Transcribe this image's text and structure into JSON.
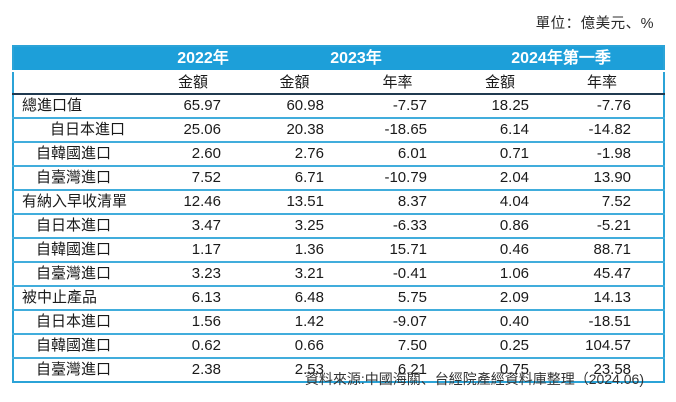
{
  "unit_label": "單位：億美元、%",
  "source_note": "資料來源:中國海關、台經院產經資料庫整理（2024.06)",
  "colors": {
    "header_bg": "#1D9FD9",
    "header_text": "#FFFFFF",
    "separator": "#41ADDC",
    "border": "#2BA3D7",
    "dark_line": "#203A50",
    "body_text": "#1A1A1A"
  },
  "table": {
    "year_headers": [
      {
        "label": "2022年",
        "span": 1
      },
      {
        "label": "2023年",
        "span": 2
      },
      {
        "label": "2024年第一季",
        "span": 2
      }
    ],
    "sub_headers": [
      "金額",
      "金額",
      "年率",
      "金額",
      "年率"
    ],
    "rows": [
      {
        "label": "總進口值",
        "indent": 0,
        "values": [
          "65.97",
          "60.98",
          "-7.57",
          "18.25",
          "-7.76"
        ]
      },
      {
        "label": "自日本進口",
        "indent": 2,
        "values": [
          "25.06",
          "20.38",
          "-18.65",
          "6.14",
          "-14.82"
        ]
      },
      {
        "label": "自韓國進口",
        "indent": 1,
        "values": [
          "2.60",
          "2.76",
          "6.01",
          "0.71",
          "-1.98"
        ]
      },
      {
        "label": "自臺灣進口",
        "indent": 1,
        "values": [
          "7.52",
          "6.71",
          "-10.79",
          "2.04",
          "13.90"
        ]
      },
      {
        "label": "有納入早收清單",
        "indent": 0,
        "values": [
          "12.46",
          "13.51",
          "8.37",
          "4.04",
          "7.52"
        ]
      },
      {
        "label": "自日本進口",
        "indent": 1,
        "values": [
          "3.47",
          "3.25",
          "-6.33",
          "0.86",
          "-5.21"
        ]
      },
      {
        "label": "自韓國進口",
        "indent": 1,
        "values": [
          "1.17",
          "1.36",
          "15.71",
          "0.46",
          "88.71"
        ]
      },
      {
        "label": "自臺灣進口",
        "indent": 1,
        "values": [
          "3.23",
          "3.21",
          "-0.41",
          "1.06",
          "45.47"
        ]
      },
      {
        "label": "被中止產品",
        "indent": 0,
        "values": [
          "6.13",
          "6.48",
          "5.75",
          "2.09",
          "14.13"
        ]
      },
      {
        "label": "自日本進口",
        "indent": 1,
        "values": [
          "1.56",
          "1.42",
          "-9.07",
          "0.40",
          "-18.51"
        ]
      },
      {
        "label": "自韓國進口",
        "indent": 1,
        "values": [
          "0.62",
          "0.66",
          "7.50",
          "0.25",
          "104.57"
        ]
      },
      {
        "label": "自臺灣進口",
        "indent": 1,
        "values": [
          "2.38",
          "2.53",
          "6.21",
          "0.75",
          "23.58"
        ]
      }
    ]
  }
}
